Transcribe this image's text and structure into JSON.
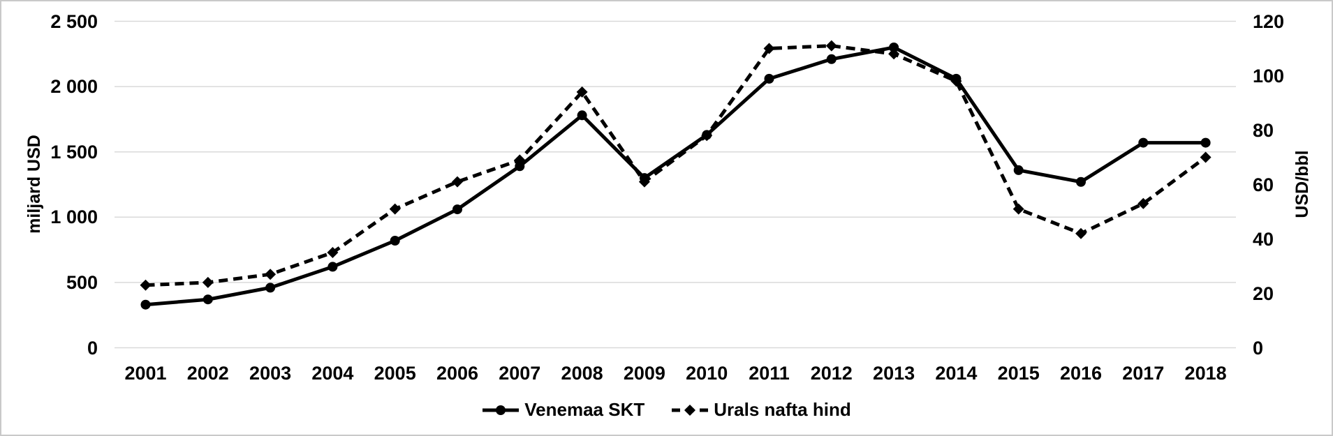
{
  "chart_data": {
    "type": "line",
    "title": "",
    "categories": [
      "2001",
      "2002",
      "2003",
      "2004",
      "2005",
      "2006",
      "2007",
      "2008",
      "2009",
      "2010",
      "2011",
      "2012",
      "2013",
      "2014",
      "2015",
      "2016",
      "2017",
      "2018"
    ],
    "series": [
      {
        "name": "Venemaa SKT",
        "axis": "left",
        "line_style": "solid",
        "marker": "circle",
        "values": [
          330,
          370,
          460,
          620,
          820,
          1060,
          1390,
          1780,
          1300,
          1630,
          2060,
          2210,
          2300,
          2060,
          1360,
          1270,
          1570,
          1570
        ]
      },
      {
        "name": "Urals nafta hind",
        "axis": "right",
        "line_style": "dashed",
        "marker": "diamond",
        "values": [
          23,
          24,
          27,
          35,
          51,
          61,
          69,
          94,
          61,
          78,
          110,
          111,
          108,
          98,
          51,
          42,
          53,
          70
        ]
      }
    ],
    "left_axis": {
      "label": "miljard USD",
      "min": 0,
      "max": 2500,
      "tick_interval": 500,
      "ticks": [
        "0",
        "500",
        "1 000",
        "1 500",
        "2 000",
        "2 500"
      ]
    },
    "right_axis": {
      "label": "USD/bbl",
      "min": 0,
      "max": 120,
      "tick_interval": 20,
      "ticks": [
        "0",
        "20",
        "40",
        "60",
        "80",
        "100",
        "120"
      ]
    },
    "grid": true,
    "legend_position": "bottom",
    "colors": {
      "series": "#000000",
      "gridline": "#d9d9d9",
      "background": "#ffffff",
      "border": "#c9c9c9"
    }
  }
}
